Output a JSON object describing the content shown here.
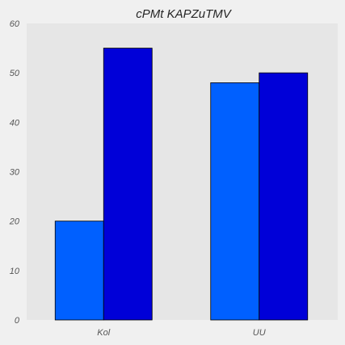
{
  "chart_data": {
    "type": "bar",
    "title": "cPMt  KAPZuTMV",
    "xlabel": "",
    "ylabel": "",
    "categories": [
      "Kol",
      "UU"
    ],
    "series": [
      {
        "values": [
          20,
          48
        ],
        "color": "#0060ff"
      },
      {
        "values": [
          55,
          50
        ],
        "color": "#0000d8"
      }
    ],
    "ylim": [
      0,
      60
    ],
    "yticks": [
      0,
      10,
      20,
      30,
      40,
      50,
      60
    ],
    "grid": false,
    "legend": "none",
    "plot_background": "#e6e6e6",
    "figure_background": "#f0f0f0"
  }
}
